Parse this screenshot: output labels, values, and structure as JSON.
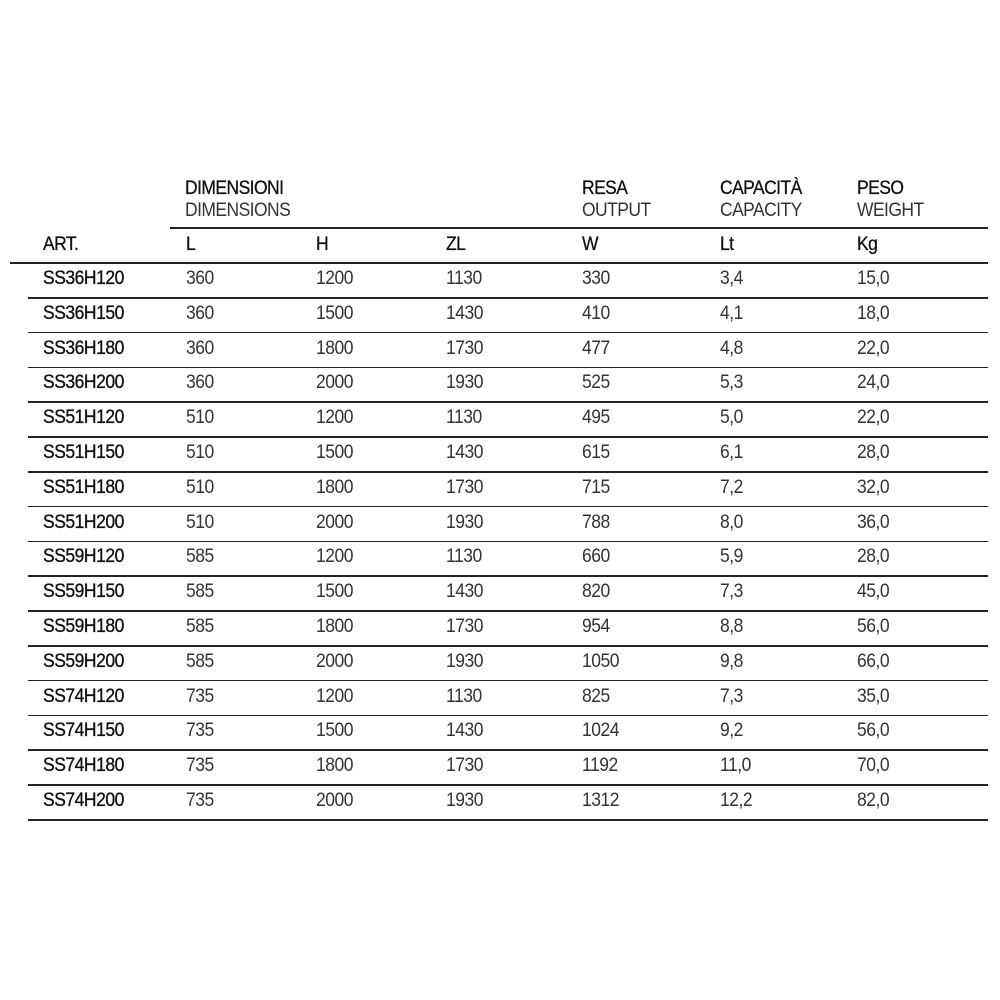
{
  "header": {
    "dimensions": {
      "it": "DIMENSIONI",
      "en": "DIMENSIONS"
    },
    "output": {
      "it": "RESA",
      "en": "OUTPUT"
    },
    "capacity": {
      "it": "CAPACITÀ",
      "en": "CAPACITY"
    },
    "weight": {
      "it": "PESO",
      "en": "WEIGHT"
    }
  },
  "columns": [
    "ART.",
    "L",
    "H",
    "ZL",
    "W",
    "Lt",
    "Kg"
  ],
  "rows": [
    [
      "SS36H120",
      "360",
      "1200",
      "1130",
      "330",
      "3,4",
      "15,0"
    ],
    [
      "SS36H150",
      "360",
      "1500",
      "1430",
      "410",
      "4,1",
      "18,0"
    ],
    [
      "SS36H180",
      "360",
      "1800",
      "1730",
      "477",
      "4,8",
      "22,0"
    ],
    [
      "SS36H200",
      "360",
      "2000",
      "1930",
      "525",
      "5,3",
      "24,0"
    ],
    [
      "SS51H120",
      "510",
      "1200",
      "1130",
      "495",
      "5,0",
      "22,0"
    ],
    [
      "SS51H150",
      "510",
      "1500",
      "1430",
      "615",
      "6,1",
      "28,0"
    ],
    [
      "SS51H180",
      "510",
      "1800",
      "1730",
      "715",
      "7,2",
      "32,0"
    ],
    [
      "SS51H200",
      "510",
      "2000",
      "1930",
      "788",
      "8,0",
      "36,0"
    ],
    [
      "SS59H120",
      "585",
      "1200",
      "1130",
      "660",
      "5,9",
      "28,0"
    ],
    [
      "SS59H150",
      "585",
      "1500",
      "1430",
      "820",
      "7,3",
      "45,0"
    ],
    [
      "SS59H180",
      "585",
      "1800",
      "1730",
      "954",
      "8,8",
      "56,0"
    ],
    [
      "SS59H200",
      "585",
      "2000",
      "1930",
      "1050",
      "9,8",
      "66,0"
    ],
    [
      "SS74H120",
      "735",
      "1200",
      "1130",
      "825",
      "7,3",
      "35,0"
    ],
    [
      "SS74H150",
      "735",
      "1500",
      "1430",
      "1024",
      "9,2",
      "56,0"
    ],
    [
      "SS74H180",
      "735",
      "1800",
      "1730",
      "1192",
      "11,0",
      "70,0"
    ],
    [
      "SS74H200",
      "735",
      "2000",
      "1930",
      "1312",
      "12,2",
      "82,0"
    ]
  ]
}
